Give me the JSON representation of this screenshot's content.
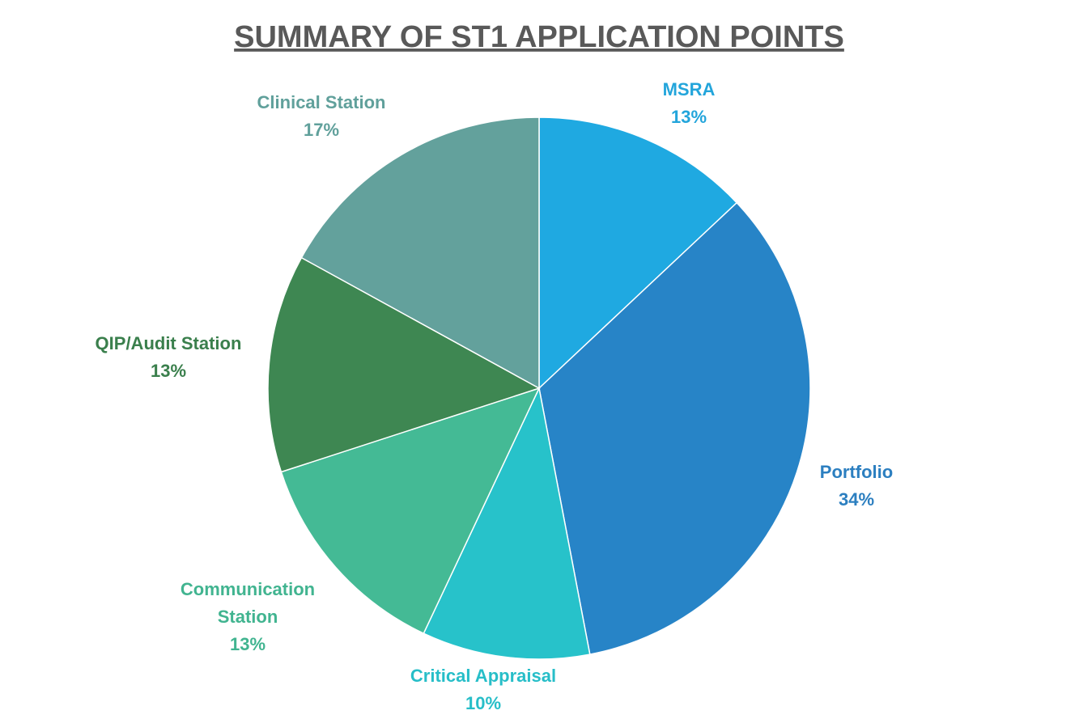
{
  "chart_data": {
    "type": "pie",
    "title": "SUMMARY OF ST1 APPLICATION POINTS",
    "slices": [
      {
        "label": "MSRA",
        "label_lines": [
          "MSRA"
        ],
        "value": 13,
        "value_label": "13%",
        "color": "#1FA9E1"
      },
      {
        "label": "Portfolio",
        "label_lines": [
          "Portfolio"
        ],
        "value": 34,
        "value_label": "34%",
        "color": "#2784C7"
      },
      {
        "label": "Critical Appraisal",
        "label_lines": [
          "Critical Appraisal"
        ],
        "value": 10,
        "value_label": "10%",
        "color": "#27C2CA"
      },
      {
        "label": "Communication Station",
        "label_lines": [
          "Communication",
          "Station"
        ],
        "value": 13,
        "value_label": "13%",
        "color": "#44BA95"
      },
      {
        "label": "QIP/Audit Station",
        "label_lines": [
          "QIP/Audit Station"
        ],
        "value": 13,
        "value_label": "13%",
        "color": "#3E8752"
      },
      {
        "label": "Clinical Station",
        "label_lines": [
          "Clinical Station"
        ],
        "value": 17,
        "value_label": "17%",
        "color": "#63A19C"
      }
    ],
    "start_angle": "12 o'clock",
    "direction": "clockwise",
    "legend": "none",
    "label_text_colors": [
      "#23A5DB",
      "#2C7FC0",
      "#27BEC8",
      "#41B490",
      "#3A7F4C",
      "#60A09B"
    ]
  }
}
